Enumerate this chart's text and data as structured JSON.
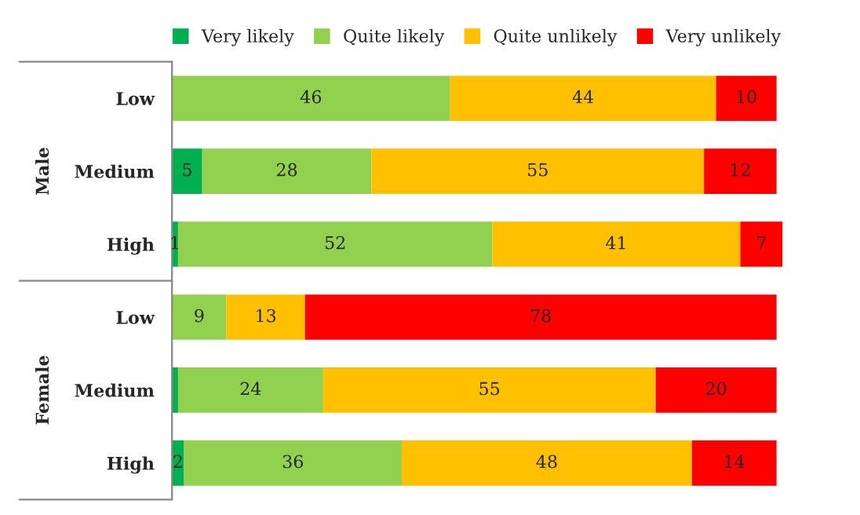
{
  "chart_data": {
    "type": "bar",
    "orientation": "horizontal",
    "stacked": true,
    "legend": "top",
    "grid": false,
    "categories": [
      "Low",
      "Medium",
      "High",
      "Low",
      "Medium",
      "High"
    ],
    "annotations": [
      "Male",
      "Female"
    ],
    "series": [
      {
        "name": "Very likely",
        "color": "#00b050",
        "values": [
          0,
          5,
          1,
          0,
          1,
          2
        ],
        "value_labels": [
          null,
          "5",
          "1",
          null,
          null,
          "2"
        ]
      },
      {
        "name": "Quite likely",
        "color": "#92d050",
        "values": [
          46,
          28,
          52,
          9,
          24,
          36
        ],
        "value_labels": [
          "46",
          "28",
          "52",
          "9",
          "24",
          "36"
        ]
      },
      {
        "name": "Quite unlikely",
        "color": "#ffc000",
        "values": [
          44,
          55,
          41,
          13,
          55,
          48
        ],
        "value_labels": [
          "44",
          "55",
          "41",
          "13",
          "55",
          "48"
        ]
      },
      {
        "name": "Very unlikely",
        "color": "#ff0000",
        "values": [
          10,
          12,
          7,
          78,
          20,
          14
        ],
        "value_labels": [
          "10",
          "12",
          "7",
          "78",
          "20",
          "14"
        ]
      }
    ]
  }
}
